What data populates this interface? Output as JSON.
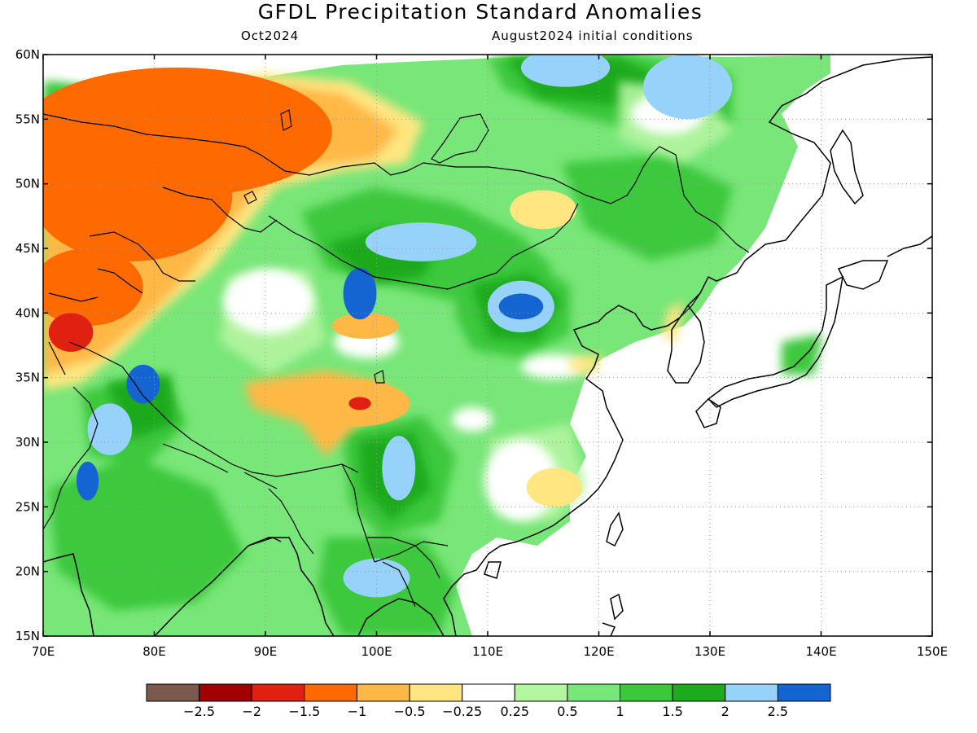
{
  "title": "GFDL Precipitation Standard Anomalies",
  "subtitle_left": "Oct2024",
  "subtitle_right": "August2024 initial conditions",
  "map": {
    "lon_range": [
      70,
      150
    ],
    "lat_range": [
      15,
      60
    ],
    "lat_ticks": [
      {
        "value": 60,
        "label": "60N"
      },
      {
        "value": 55,
        "label": "55N"
      },
      {
        "value": 50,
        "label": "50N"
      },
      {
        "value": 45,
        "label": "45N"
      },
      {
        "value": 40,
        "label": "40N"
      },
      {
        "value": 35,
        "label": "35N"
      },
      {
        "value": 30,
        "label": "30N"
      },
      {
        "value": 25,
        "label": "25N"
      },
      {
        "value": 20,
        "label": "20N"
      },
      {
        "value": 15,
        "label": "15N"
      }
    ],
    "lon_ticks": [
      {
        "value": 70,
        "label": "70E"
      },
      {
        "value": 80,
        "label": "80E"
      },
      {
        "value": 90,
        "label": "90E"
      },
      {
        "value": 100,
        "label": "100E"
      },
      {
        "value": 110,
        "label": "110E"
      },
      {
        "value": 120,
        "label": "120E"
      },
      {
        "value": 130,
        "label": "130E"
      },
      {
        "value": 140,
        "label": "140E"
      },
      {
        "value": 150,
        "label": "150E"
      }
    ],
    "gridlines": true
  },
  "colorbar": {
    "colors": [
      "#7b5a4e",
      "#a00000",
      "#e02010",
      "#ff6a00",
      "#ffb845",
      "#ffe680",
      "#ffffff",
      "#b4f5a0",
      "#78e678",
      "#3cc83c",
      "#1eaa1e",
      "#96d2fa",
      "#1464d2"
    ],
    "labels": [
      "−2.5",
      "−2",
      "−1.5",
      "−1",
      "−0.5",
      "−0.25",
      "0.25",
      "0.5",
      "1",
      "1.5",
      "2",
      "2.5"
    ]
  },
  "anomaly_regions": [
    {
      "lon": 82,
      "lat": 54,
      "rx": 14,
      "ry": 5,
      "level": -1.5,
      "color": "#ff6a00"
    },
    {
      "lon": 78,
      "lat": 49,
      "rx": 9,
      "ry": 5,
      "level": -1.5,
      "color": "#ff6a00"
    },
    {
      "lon": 74,
      "lat": 42,
      "rx": 5,
      "ry": 3,
      "level": -1.5,
      "color": "#ff6a00"
    },
    {
      "lon": 72.5,
      "lat": 38.5,
      "rx": 2,
      "ry": 1.5,
      "level": -2,
      "color": "#e02010"
    },
    {
      "lon": 99,
      "lat": 39,
      "rx": 3,
      "ry": 1,
      "level": -1,
      "color": "#ffb845"
    },
    {
      "lon": 98,
      "lat": 33,
      "rx": 5,
      "ry": 1.8,
      "level": -1,
      "color": "#ffb845"
    },
    {
      "lon": 98.5,
      "lat": 33,
      "rx": 1,
      "ry": 0.5,
      "level": -2,
      "color": "#e02010"
    },
    {
      "lon": 116,
      "lat": 26.5,
      "rx": 2.5,
      "ry": 1.5,
      "level": -0.5,
      "color": "#ffe680"
    },
    {
      "lon": 115,
      "lat": 48,
      "rx": 3,
      "ry": 1.5,
      "level": -0.5,
      "color": "#ffe680"
    },
    {
      "lon": 104,
      "lat": 45.5,
      "rx": 5,
      "ry": 1.5,
      "level": 2,
      "color": "#96d2fa"
    },
    {
      "lon": 113,
      "lat": 40.5,
      "rx": 3,
      "ry": 2,
      "level": 2,
      "color": "#96d2fa"
    },
    {
      "lon": 113,
      "lat": 40.5,
      "rx": 2,
      "ry": 1,
      "level": 2.5,
      "color": "#1464d2"
    },
    {
      "lon": 98.5,
      "lat": 41.5,
      "rx": 1.5,
      "ry": 2,
      "level": 2.5,
      "color": "#1464d2"
    },
    {
      "lon": 79,
      "lat": 34.5,
      "rx": 1.5,
      "ry": 1.5,
      "level": 2.5,
      "color": "#1464d2"
    },
    {
      "lon": 76,
      "lat": 31,
      "rx": 2,
      "ry": 2,
      "level": 2,
      "color": "#96d2fa"
    },
    {
      "lon": 74,
      "lat": 27,
      "rx": 1,
      "ry": 1.5,
      "level": 2.5,
      "color": "#1464d2"
    },
    {
      "lon": 102,
      "lat": 28,
      "rx": 1.5,
      "ry": 2.5,
      "level": 2,
      "color": "#96d2fa"
    },
    {
      "lon": 100,
      "lat": 19.5,
      "rx": 3,
      "ry": 1.5,
      "level": 2,
      "color": "#96d2fa"
    },
    {
      "lon": 117,
      "lat": 59,
      "rx": 4,
      "ry": 1.5,
      "level": 2,
      "color": "#96d2fa"
    },
    {
      "lon": 128,
      "lat": 57.5,
      "rx": 4,
      "ry": 2.5,
      "level": 2,
      "color": "#96d2fa"
    }
  ]
}
